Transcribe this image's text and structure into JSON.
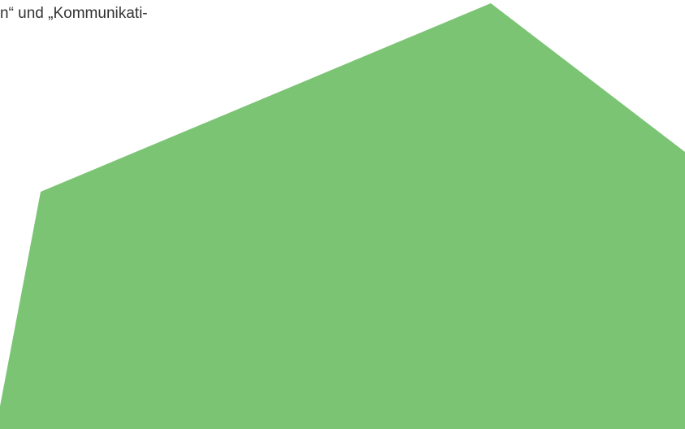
{
  "document": {
    "text_fragment": "n“ und „Kommunikati-"
  },
  "colors": {
    "background": "#ffffff",
    "text": "#333333",
    "accent_shape": "#7bc474"
  }
}
